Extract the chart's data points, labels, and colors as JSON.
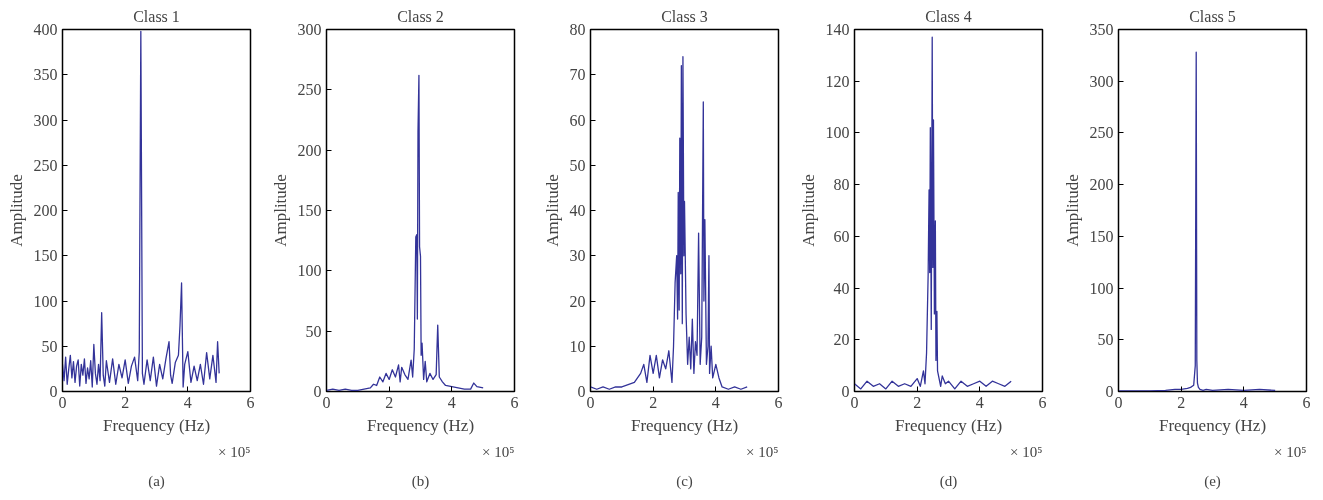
{
  "chart_data": [
    {
      "type": "line",
      "title": "Class 1",
      "xlabel": "Frequency (Hz)",
      "ylabel": "Amplitude",
      "color": "#333399",
      "xlim": [
        0,
        6
      ],
      "xticks": [
        0,
        2,
        4,
        6
      ],
      "ylim": [
        0,
        400
      ],
      "yticks": [
        0,
        50,
        100,
        150,
        200,
        250,
        300,
        350,
        400
      ],
      "annotations": [
        "× 10⁵",
        "(a)"
      ],
      "x": [
        0,
        0.05,
        0.1,
        0.15,
        0.2,
        0.25,
        0.3,
        0.35,
        0.4,
        0.45,
        0.5,
        0.55,
        0.6,
        0.65,
        0.7,
        0.75,
        0.8,
        0.85,
        0.9,
        0.95,
        1.0,
        1.05,
        1.1,
        1.15,
        1.2,
        1.25,
        1.3,
        1.35,
        1.4,
        1.5,
        1.6,
        1.7,
        1.8,
        1.9,
        2.0,
        2.1,
        2.2,
        2.3,
        2.4,
        2.45,
        2.5,
        2.55,
        2.6,
        2.7,
        2.8,
        2.9,
        3.0,
        3.1,
        3.2,
        3.3,
        3.4,
        3.45,
        3.5,
        3.6,
        3.7,
        3.75,
        3.8,
        3.85,
        3.9,
        4.0,
        4.1,
        4.2,
        4.3,
        4.4,
        4.5,
        4.6,
        4.7,
        4.8,
        4.9,
        4.95,
        5.0
      ],
      "values": [
        30,
        12,
        38,
        8,
        25,
        40,
        15,
        33,
        10,
        28,
        35,
        6,
        30,
        18,
        36,
        9,
        26,
        14,
        34,
        5,
        52,
        20,
        8,
        30,
        12,
        87,
        18,
        6,
        34,
        10,
        36,
        8,
        30,
        15,
        35,
        9,
        28,
        38,
        12,
        44,
        398,
        20,
        8,
        35,
        12,
        38,
        6,
        30,
        14,
        36,
        55,
        18,
        9,
        32,
        40,
        73,
        120,
        5,
        30,
        44,
        10,
        28,
        12,
        30,
        8,
        43,
        14,
        40,
        10,
        55,
        20
      ]
    },
    {
      "type": "line",
      "title": "Class 2",
      "xlabel": "Frequency (Hz)",
      "ylabel": "Amplitude",
      "color": "#333399",
      "xlim": [
        0,
        6
      ],
      "xticks": [
        0,
        2,
        4,
        6
      ],
      "ylim": [
        0,
        300
      ],
      "yticks": [
        0,
        50,
        100,
        150,
        200,
        250,
        300
      ],
      "annotations": [
        "× 10⁵",
        "(b)"
      ],
      "x": [
        0,
        0.2,
        0.4,
        0.6,
        0.8,
        1.0,
        1.2,
        1.4,
        1.5,
        1.6,
        1.7,
        1.8,
        1.9,
        2.0,
        2.1,
        2.2,
        2.3,
        2.35,
        2.4,
        2.5,
        2.6,
        2.7,
        2.75,
        2.8,
        2.85,
        2.88,
        2.9,
        2.92,
        2.95,
        2.97,
        3.0,
        3.02,
        3.05,
        3.1,
        3.15,
        3.2,
        3.3,
        3.4,
        3.5,
        3.55,
        3.6,
        3.7,
        3.8,
        4.0,
        4.2,
        4.4,
        4.6,
        4.7,
        4.8,
        5.0
      ],
      "values": [
        1,
        2,
        1,
        2,
        1,
        1,
        2,
        3,
        6,
        5,
        12,
        8,
        15,
        10,
        18,
        12,
        22,
        8,
        20,
        14,
        10,
        26,
        12,
        35,
        128,
        130,
        60,
        215,
        262,
        120,
        112,
        30,
        40,
        10,
        25,
        8,
        15,
        10,
        14,
        55,
        12,
        8,
        5,
        4,
        3,
        2,
        2,
        7,
        4,
        3
      ]
    },
    {
      "type": "line",
      "title": "Class 3",
      "xlabel": "Frequency (Hz)",
      "ylabel": "Amplitude",
      "color": "#333399",
      "xlim": [
        0,
        6
      ],
      "xticks": [
        0,
        2,
        4,
        6
      ],
      "ylim": [
        0,
        80
      ],
      "yticks": [
        0,
        10,
        20,
        30,
        40,
        50,
        60,
        70,
        80
      ],
      "annotations": [
        "× 10⁵",
        "(c)"
      ],
      "x": [
        0,
        0.2,
        0.4,
        0.6,
        0.8,
        1.0,
        1.2,
        1.4,
        1.5,
        1.6,
        1.7,
        1.8,
        1.85,
        1.9,
        2.0,
        2.1,
        2.2,
        2.3,
        2.4,
        2.5,
        2.6,
        2.65,
        2.7,
        2.75,
        2.78,
        2.8,
        2.83,
        2.85,
        2.88,
        2.9,
        2.93,
        2.95,
        2.98,
        3.0,
        3.05,
        3.1,
        3.15,
        3.2,
        3.25,
        3.3,
        3.35,
        3.4,
        3.45,
        3.5,
        3.55,
        3.6,
        3.62,
        3.65,
        3.7,
        3.75,
        3.78,
        3.8,
        3.85,
        3.9,
        4.0,
        4.1,
        4.2,
        4.4,
        4.6,
        4.8,
        5.0
      ],
      "values": [
        1,
        0.5,
        1,
        0.5,
        1,
        1,
        1.5,
        2,
        3,
        4,
        6,
        2,
        5,
        8,
        4,
        8,
        3,
        7,
        5,
        9,
        2,
        10,
        24,
        30,
        16,
        44,
        18,
        56,
        26,
        72,
        15,
        74,
        30,
        42,
        17,
        6,
        12,
        5,
        16,
        4,
        11,
        8,
        35,
        6,
        12,
        64,
        20,
        38,
        6,
        10,
        30,
        4,
        10,
        3,
        6,
        3,
        1,
        0.5,
        1,
        0.5,
        1
      ]
    },
    {
      "type": "line",
      "title": "Class 4",
      "xlabel": "Frequency (Hz)",
      "ylabel": "Amplitude",
      "color": "#333399",
      "xlim": [
        0,
        6
      ],
      "xticks": [
        0,
        2,
        4,
        6
      ],
      "ylim": [
        0,
        140
      ],
      "yticks": [
        0,
        20,
        40,
        60,
        80,
        100,
        120,
        140
      ],
      "annotations": [
        "× 10⁵",
        "(d)"
      ],
      "x": [
        0,
        0.2,
        0.4,
        0.6,
        0.8,
        1.0,
        1.2,
        1.4,
        1.6,
        1.8,
        2.0,
        2.1,
        2.2,
        2.25,
        2.3,
        2.35,
        2.38,
        2.4,
        2.42,
        2.45,
        2.48,
        2.5,
        2.52,
        2.55,
        2.58,
        2.6,
        2.63,
        2.65,
        2.7,
        2.75,
        2.8,
        2.9,
        3.0,
        3.2,
        3.4,
        3.6,
        3.8,
        4.0,
        4.2,
        4.4,
        4.6,
        4.8,
        5.0
      ],
      "values": [
        3,
        1,
        4,
        2,
        3,
        1,
        4,
        2,
        3,
        2,
        5,
        2,
        8,
        3,
        15,
        45,
        78,
        46,
        102,
        24,
        137,
        48,
        105,
        30,
        66,
        12,
        31,
        8,
        5,
        2,
        6,
        3,
        4,
        1,
        4,
        2,
        3,
        4,
        2,
        4,
        3,
        2,
        4
      ]
    },
    {
      "type": "line",
      "title": "Class 5",
      "xlabel": "Frequency (Hz)",
      "ylabel": "Amplitude",
      "color": "#333399",
      "xlim": [
        0,
        6
      ],
      "xticks": [
        0,
        2,
        4,
        6
      ],
      "ylim": [
        0,
        350
      ],
      "yticks": [
        0,
        50,
        100,
        150,
        200,
        250,
        300,
        350
      ],
      "annotations": [
        "× 10⁵",
        "(e)"
      ],
      "x": [
        0,
        0.5,
        1.0,
        1.5,
        1.8,
        2.0,
        2.2,
        2.3,
        2.4,
        2.45,
        2.48,
        2.5,
        2.52,
        2.55,
        2.6,
        2.7,
        2.8,
        3.0,
        3.5,
        4.0,
        4.5,
        5.0
      ],
      "values": [
        0.5,
        0.5,
        0.5,
        1,
        2,
        2,
        3,
        4,
        6,
        25,
        328,
        30,
        8,
        4,
        2,
        1,
        2,
        1,
        2,
        1,
        2,
        1
      ]
    }
  ]
}
